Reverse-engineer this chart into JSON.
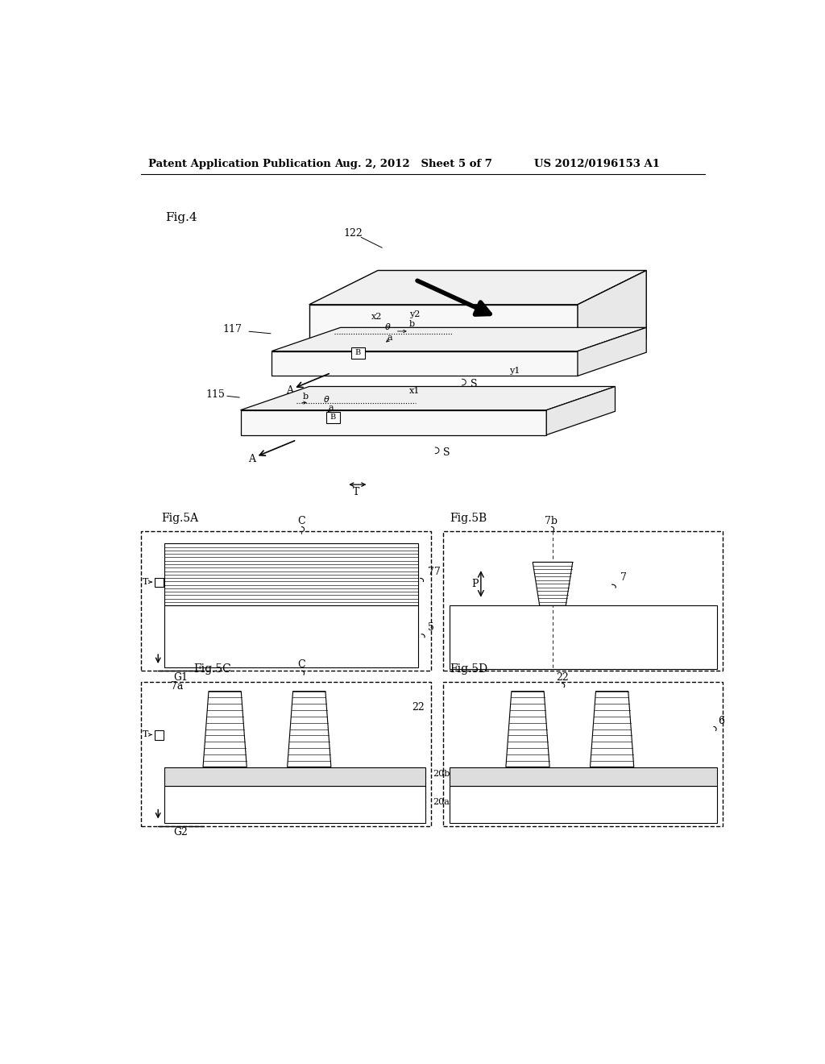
{
  "bg_color": "#ffffff",
  "header_left": "Patent Application Publication",
  "header_mid": "Aug. 2, 2012   Sheet 5 of 7",
  "header_right": "US 2012/0196153 A1"
}
